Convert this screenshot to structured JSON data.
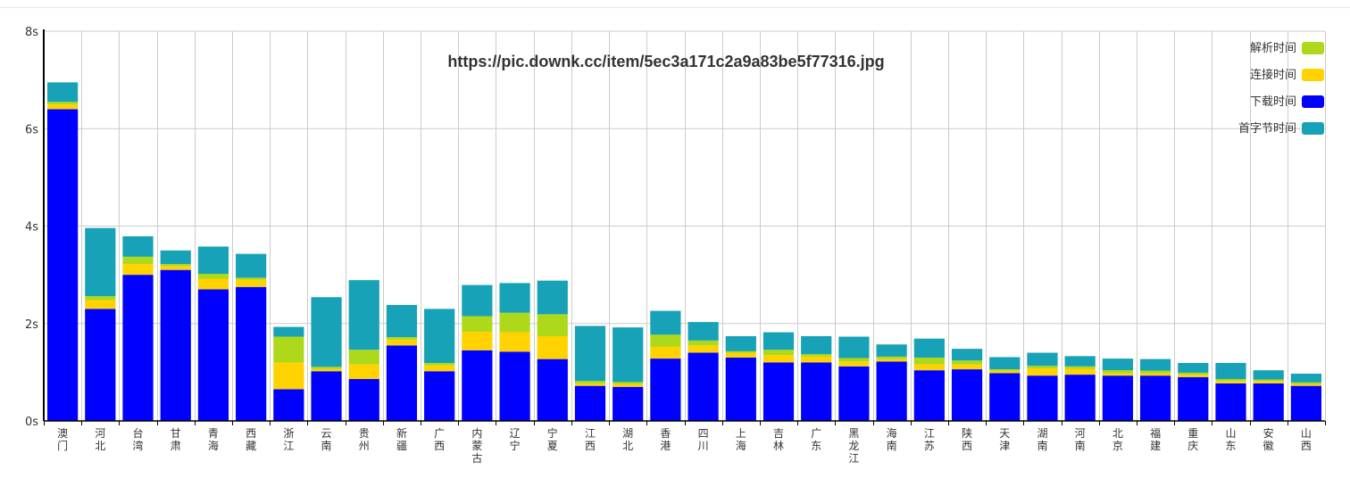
{
  "chart_data": {
    "type": "bar",
    "stacked": true,
    "title": "https://pic.downk.cc/item/5ec3a171c2a9a83be5f77316.jpg",
    "xlabel": "",
    "ylabel": "",
    "ylim": [
      0,
      8
    ],
    "yticks": [
      0,
      2,
      4,
      6,
      8
    ],
    "ytick_labels": [
      "0s",
      "2s",
      "4s",
      "6s",
      "8s"
    ],
    "grid": true,
    "legend_position": "top-right",
    "categories": [
      "澳门",
      "河北",
      "台湾",
      "甘肃",
      "青海",
      "西藏",
      "浙江",
      "云南",
      "贵州",
      "新疆",
      "广西",
      "内蒙古",
      "辽宁",
      "宁夏",
      "江西",
      "湖北",
      "香港",
      "四川",
      "上海",
      "吉林",
      "广东",
      "黑龙江",
      "海南",
      "江苏",
      "陕西",
      "天津",
      "湖南",
      "河南",
      "北京",
      "福建",
      "重庆",
      "山东",
      "安徽",
      "山西"
    ],
    "series": [
      {
        "name": "下载时间",
        "color": "#0000ff",
        "values": [
          6.4,
          2.3,
          3.0,
          3.1,
          2.7,
          2.75,
          0.65,
          1.02,
          0.86,
          1.55,
          1.02,
          1.45,
          1.42,
          1.27,
          0.72,
          0.7,
          1.28,
          1.4,
          1.3,
          1.2,
          1.2,
          1.12,
          1.22,
          1.04,
          1.06,
          0.98,
          0.93,
          0.95,
          0.93,
          0.93,
          0.9,
          0.77,
          0.77,
          0.72
        ]
      },
      {
        "name": "连接时间",
        "color": "#ffd200",
        "values": [
          0.1,
          0.18,
          0.22,
          0.08,
          0.22,
          0.15,
          0.55,
          0.05,
          0.3,
          0.12,
          0.12,
          0.38,
          0.4,
          0.47,
          0.05,
          0.06,
          0.24,
          0.15,
          0.1,
          0.15,
          0.12,
          0.1,
          0.05,
          0.12,
          0.1,
          0.05,
          0.15,
          0.12,
          0.05,
          0.05,
          0.05,
          0.05,
          0.05,
          0.04
        ]
      },
      {
        "name": "解析时间",
        "color": "#add91a",
        "values": [
          0.05,
          0.08,
          0.15,
          0.04,
          0.1,
          0.04,
          0.53,
          0.04,
          0.3,
          0.05,
          0.05,
          0.32,
          0.4,
          0.45,
          0.05,
          0.04,
          0.25,
          0.1,
          0.03,
          0.11,
          0.05,
          0.07,
          0.05,
          0.14,
          0.08,
          0.03,
          0.05,
          0.05,
          0.06,
          0.05,
          0.04,
          0.04,
          0.03,
          0.03
        ]
      },
      {
        "name": "首字节时间",
        "color": "#17a2b8",
        "values": [
          0.4,
          1.4,
          0.42,
          0.28,
          0.56,
          0.49,
          0.2,
          1.43,
          1.43,
          0.66,
          1.11,
          0.64,
          0.61,
          0.69,
          1.13,
          1.12,
          0.49,
          0.38,
          0.31,
          0.36,
          0.37,
          0.44,
          0.25,
          0.39,
          0.24,
          0.25,
          0.27,
          0.21,
          0.24,
          0.24,
          0.2,
          0.33,
          0.19,
          0.18
        ]
      }
    ],
    "legend": [
      {
        "name": "解析时间",
        "color": "#add91a"
      },
      {
        "name": "连接时间",
        "color": "#ffd200"
      },
      {
        "name": "下载时间",
        "color": "#0000ff"
      },
      {
        "name": "首字节时间",
        "color": "#17a2b8"
      }
    ],
    "colors": {
      "grid": "#cccccc",
      "axis": "#000000",
      "text": "#333333"
    }
  }
}
